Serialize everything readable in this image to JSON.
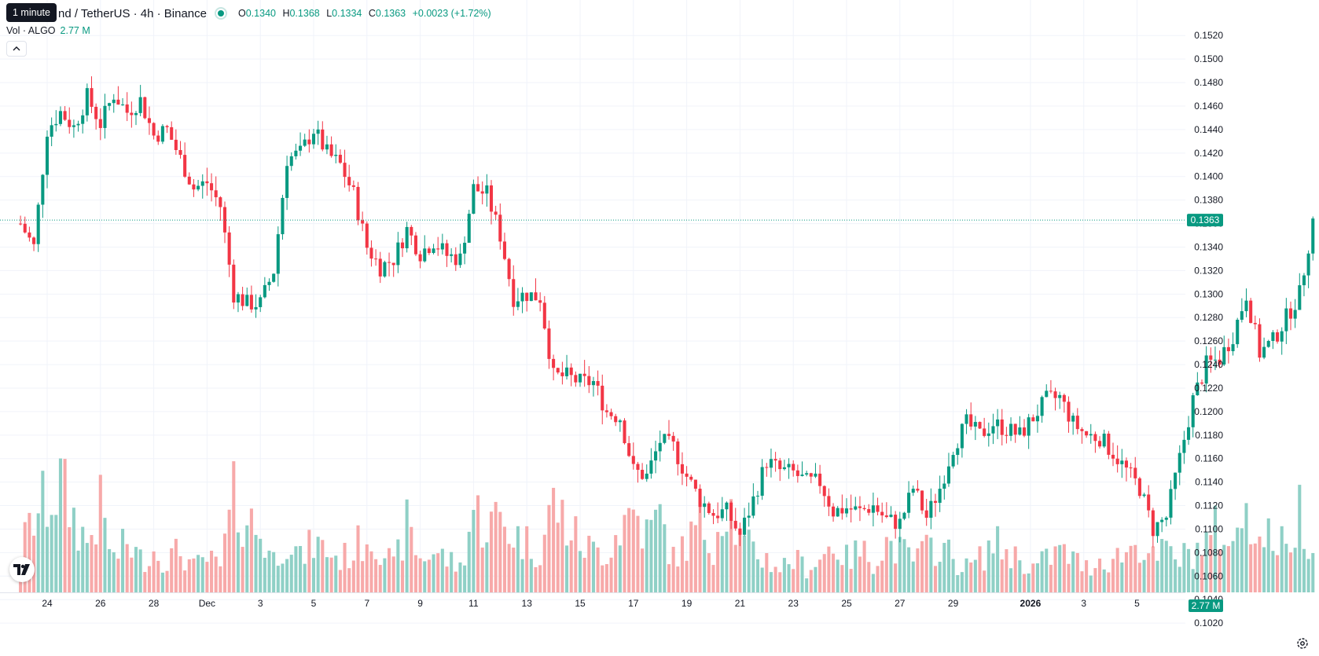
{
  "header": {
    "tooltip": "1 minute",
    "symbol_title": "nd / TetherUS · 4h · Binance",
    "ohlc": {
      "o_label": "O",
      "o": "0.1340",
      "h_label": "H",
      "h": "0.1368",
      "l_label": "L",
      "l": "0.1334",
      "c_label": "C",
      "c": "0.1363",
      "change": "+0.0023 (+1.72%)"
    },
    "volume_label": "Vol · ALGO",
    "volume_value": "2.77 M"
  },
  "icons": {
    "collapse": "chevron-up-icon",
    "logo": "tradingview-logo",
    "settings": "gear-icon"
  },
  "colors": {
    "up": "#089981",
    "down": "#F23645",
    "up_volume": "#8FD0C6",
    "down_volume": "#F7A9A9",
    "grid": "#F0F3FA",
    "text": "#131722"
  },
  "chart_data": {
    "type": "candlestick",
    "interval": "4h",
    "x_ticks": [
      "24",
      "26",
      "28",
      "Dec",
      "3",
      "5",
      "7",
      "9",
      "11",
      "13",
      "15",
      "17",
      "19",
      "21",
      "23",
      "25",
      "27",
      "29",
      "2026",
      "3",
      "5"
    ],
    "y_ticks": [
      "0.1520",
      "0.1500",
      "0.1480",
      "0.1460",
      "0.1440",
      "0.1420",
      "0.1400",
      "0.1380",
      "0.1360",
      "0.1340",
      "0.1320",
      "0.1300",
      "0.1280",
      "0.1260",
      "0.1240",
      "0.1220",
      "0.1200",
      "0.1180",
      "0.1160",
      "0.1140",
      "0.1120",
      "0.1100",
      "0.1080",
      "0.1060",
      "0.1040",
      "0.1020"
    ],
    "y_range": [
      0.1011,
      0.1532
    ],
    "last_price": "0.1363",
    "last_volume": "2.77 M",
    "close_path": [
      [
        23.0,
        0.136
      ],
      [
        23.5,
        0.134
      ],
      [
        24.0,
        0.144
      ],
      [
        24.5,
        0.1455
      ],
      [
        25.0,
        0.1442
      ],
      [
        25.5,
        0.1468
      ],
      [
        26.0,
        0.1445
      ],
      [
        26.5,
        0.147
      ],
      [
        27.0,
        0.1455
      ],
      [
        27.5,
        0.1465
      ],
      [
        28.0,
        0.1435
      ],
      [
        28.5,
        0.144
      ],
      [
        29.0,
        0.1415
      ],
      [
        29.5,
        0.139
      ],
      [
        30.0,
        0.1395
      ],
      [
        30.5,
        0.1375
      ],
      [
        31.0,
        0.13
      ],
      [
        31.5,
        0.1292
      ],
      [
        32.0,
        0.1292
      ],
      [
        32.5,
        0.132
      ],
      [
        33.0,
        0.1415
      ],
      [
        33.5,
        0.142
      ],
      [
        34.0,
        0.144
      ],
      [
        34.5,
        0.142
      ],
      [
        35.0,
        0.141
      ],
      [
        35.5,
        0.1385
      ],
      [
        36.0,
        0.134
      ],
      [
        36.5,
        0.1323
      ],
      [
        37.0,
        0.133
      ],
      [
        37.5,
        0.1355
      ],
      [
        38.0,
        0.1335
      ],
      [
        38.5,
        0.1345
      ],
      [
        39.0,
        0.1333
      ],
      [
        39.5,
        0.133
      ],
      [
        40.0,
        0.139
      ],
      [
        40.5,
        0.1385
      ],
      [
        41.0,
        0.135
      ],
      [
        41.5,
        0.1297
      ],
      [
        42.0,
        0.13
      ],
      [
        42.5,
        0.1297
      ],
      [
        43.0,
        0.123
      ],
      [
        43.5,
        0.123
      ],
      [
        44.0,
        0.1225
      ],
      [
        44.5,
        0.1225
      ],
      [
        45.0,
        0.12
      ],
      [
        45.5,
        0.1195
      ],
      [
        46.0,
        0.115
      ],
      [
        46.5,
        0.1145
      ],
      [
        47.0,
        0.1175
      ],
      [
        47.5,
        0.117
      ],
      [
        48.0,
        0.1145
      ],
      [
        48.5,
        0.1125
      ],
      [
        49.0,
        0.1113
      ],
      [
        49.5,
        0.1115
      ],
      [
        50.0,
        0.1095
      ],
      [
        50.5,
        0.1125
      ],
      [
        51.0,
        0.1158
      ],
      [
        51.5,
        0.115
      ],
      [
        52.0,
        0.1148
      ],
      [
        52.5,
        0.114
      ],
      [
        53.0,
        0.114
      ],
      [
        53.5,
        0.1115
      ],
      [
        54.0,
        0.1118
      ],
      [
        54.5,
        0.1115
      ],
      [
        55.0,
        0.112
      ],
      [
        55.5,
        0.1108
      ],
      [
        56.0,
        0.1105
      ],
      [
        56.5,
        0.1135
      ],
      [
        57.0,
        0.111
      ],
      [
        57.5,
        0.1135
      ],
      [
        58.0,
        0.117
      ],
      [
        58.5,
        0.119
      ],
      [
        59.0,
        0.118
      ],
      [
        59.5,
        0.119
      ],
      [
        60.0,
        0.1185
      ],
      [
        60.5,
        0.118
      ],
      [
        61.0,
        0.1195
      ],
      [
        61.5,
        0.121
      ],
      [
        62.0,
        0.1212
      ],
      [
        62.5,
        0.119
      ],
      [
        63.0,
        0.118
      ],
      [
        63.5,
        0.1178
      ],
      [
        64.0,
        0.1165
      ],
      [
        64.5,
        0.115
      ],
      [
        65.0,
        0.1135
      ],
      [
        65.5,
        0.11
      ],
      [
        66.0,
        0.111
      ],
      [
        66.5,
        0.116
      ],
      [
        67.0,
        0.121
      ],
      [
        67.5,
        0.124
      ],
      [
        68.0,
        0.1245
      ],
      [
        68.5,
        0.1265
      ],
      [
        69.0,
        0.13
      ],
      [
        69.5,
        0.125
      ],
      [
        70.0,
        0.126
      ],
      [
        70.5,
        0.128
      ],
      [
        71.0,
        0.13
      ],
      [
        71.5,
        0.1363
      ]
    ],
    "volume_range": [
      0,
      19
    ],
    "volume_path": [
      [
        23.0,
        5
      ],
      [
        23.5,
        9
      ],
      [
        24.0,
        11
      ],
      [
        24.5,
        13
      ],
      [
        25.0,
        9
      ],
      [
        25.5,
        6
      ],
      [
        26.0,
        10
      ],
      [
        26.5,
        4
      ],
      [
        27.0,
        6
      ],
      [
        27.5,
        4
      ],
      [
        28.0,
        5
      ],
      [
        28.5,
        4
      ],
      [
        29.0,
        5
      ],
      [
        29.5,
        3
      ],
      [
        30.0,
        4
      ],
      [
        30.5,
        3
      ],
      [
        31.0,
        11
      ],
      [
        31.5,
        9
      ],
      [
        32.0,
        7
      ],
      [
        32.5,
        4
      ],
      [
        33.0,
        7
      ],
      [
        33.5,
        4
      ],
      [
        34.0,
        6
      ],
      [
        34.5,
        5
      ],
      [
        35.0,
        4
      ],
      [
        35.5,
        5
      ],
      [
        36.0,
        7
      ],
      [
        36.5,
        6
      ],
      [
        37.0,
        3
      ],
      [
        37.5,
        8
      ],
      [
        38.0,
        4
      ],
      [
        38.5,
        5
      ],
      [
        39.0,
        4
      ],
      [
        39.5,
        3
      ],
      [
        40.0,
        10
      ],
      [
        40.5,
        8
      ],
      [
        41.0,
        9
      ],
      [
        41.5,
        7
      ],
      [
        42.0,
        6
      ],
      [
        42.5,
        5
      ],
      [
        43.0,
        11
      ],
      [
        43.5,
        8
      ],
      [
        44.0,
        6
      ],
      [
        44.5,
        5
      ],
      [
        45.0,
        5
      ],
      [
        45.5,
        8
      ],
      [
        46.0,
        10
      ],
      [
        46.5,
        7
      ],
      [
        47.0,
        9
      ],
      [
        47.5,
        4
      ],
      [
        48.0,
        6
      ],
      [
        48.5,
        8
      ],
      [
        49.0,
        6
      ],
      [
        49.5,
        12
      ],
      [
        50.0,
        6
      ],
      [
        50.5,
        5
      ],
      [
        51.0,
        4
      ],
      [
        51.5,
        3
      ],
      [
        52.0,
        4
      ],
      [
        52.5,
        3
      ],
      [
        53.0,
        4
      ],
      [
        53.5,
        6
      ],
      [
        54.0,
        4
      ],
      [
        54.5,
        5
      ],
      [
        55.0,
        4
      ],
      [
        55.5,
        6
      ],
      [
        56.0,
        5
      ],
      [
        56.5,
        4
      ],
      [
        57.0,
        5
      ],
      [
        57.5,
        6
      ],
      [
        58.0,
        4
      ],
      [
        58.5,
        3
      ],
      [
        59.0,
        4
      ],
      [
        59.5,
        6
      ],
      [
        60.0,
        5
      ],
      [
        60.5,
        4
      ],
      [
        61.0,
        3
      ],
      [
        61.5,
        4
      ],
      [
        62.0,
        5
      ],
      [
        62.5,
        4
      ],
      [
        63.0,
        3
      ],
      [
        63.5,
        4
      ],
      [
        64.0,
        4
      ],
      [
        64.5,
        5
      ],
      [
        65.0,
        6
      ],
      [
        65.5,
        4
      ],
      [
        66.0,
        5
      ],
      [
        66.5,
        4
      ],
      [
        67.0,
        5
      ],
      [
        67.5,
        6
      ],
      [
        68.0,
        8
      ],
      [
        68.5,
        5
      ],
      [
        69.0,
        12
      ],
      [
        69.5,
        6
      ],
      [
        70.0,
        7
      ],
      [
        70.5,
        5
      ],
      [
        71.0,
        10
      ],
      [
        71.5,
        6
      ]
    ],
    "grid": true
  }
}
